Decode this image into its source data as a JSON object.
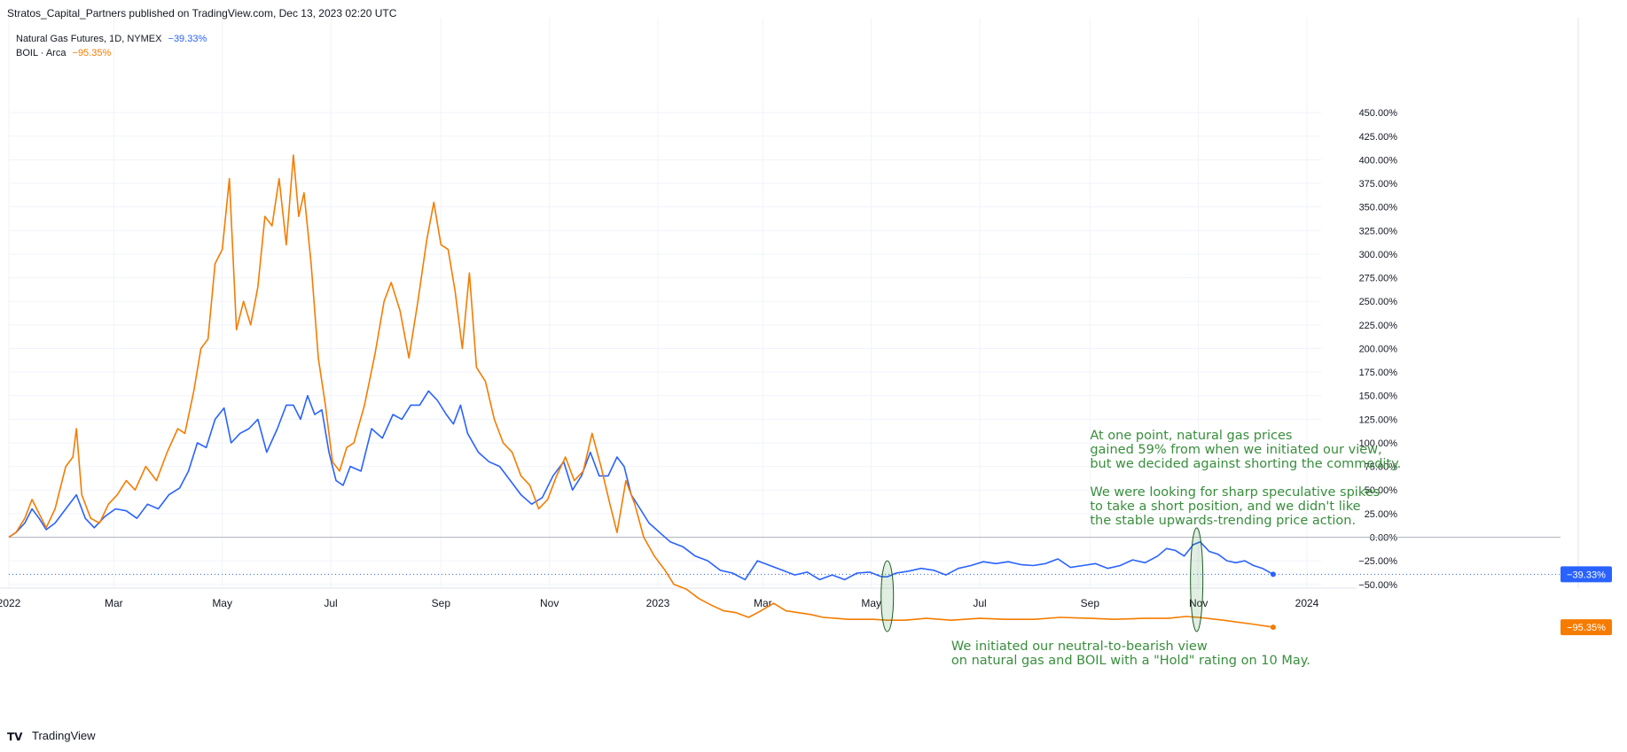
{
  "header": {
    "text": "Stratos_Capital_Partners published on TradingView.com, Dec 13, 2023 02:20 UTC"
  },
  "legend": {
    "ng_label": "Natural Gas Futures, 1D, NYMEX",
    "ng_pct": "−39.33%",
    "boil_label": "BOIL · Arca",
    "boil_pct": "−95.35%"
  },
  "footer": {
    "brand": "TradingView",
    "logo_text": "TV"
  },
  "annotations": {
    "top": "At one point, natural gas prices\ngained 59% from when we initiated our view,\nbut we decided against shorting the commodity.\n\nWe were looking for sharp speculative spikes\nto take a short position, and we didn't like\nthe stable upwards-trending price action.",
    "bottom": "We initiated our neutral-to-bearish view\non natural gas and BOIL with a \"Hold\" rating on 10 May."
  },
  "colors": {
    "ng": "#2962ff",
    "boil": "#f57c00",
    "annotation": "#388e3c",
    "grid": "#f0f3fa",
    "zero": "#b2b5be"
  },
  "chart_data": {
    "type": "line",
    "x_axis_type": "date",
    "x_range": [
      "2022-01-01",
      "2024-01-20"
    ],
    "ylim": [
      -135,
      460
    ],
    "y_ticks": [
      -125,
      -100,
      -75,
      -50,
      -25,
      0,
      25,
      50,
      75,
      100,
      125,
      150,
      175,
      200,
      225,
      250,
      275,
      300,
      325,
      350,
      375,
      400,
      425,
      450
    ],
    "y_tick_suffix": "%",
    "x_ticks": [
      {
        "date": "2022-01-01",
        "label": "2022"
      },
      {
        "date": "2022-03-01",
        "label": "Mar"
      },
      {
        "date": "2022-05-01",
        "label": "May"
      },
      {
        "date": "2022-07-01",
        "label": "Jul"
      },
      {
        "date": "2022-09-01",
        "label": "Sep"
      },
      {
        "date": "2022-11-01",
        "label": "Nov"
      },
      {
        "date": "2023-01-01",
        "label": "2023"
      },
      {
        "date": "2023-03-01",
        "label": "Mar"
      },
      {
        "date": "2023-05-01",
        "label": "May"
      },
      {
        "date": "2023-07-01",
        "label": "Jul"
      },
      {
        "date": "2023-09-01",
        "label": "Sep"
      },
      {
        "date": "2023-11-01",
        "label": "Nov"
      },
      {
        "date": "2024-01-01",
        "label": "2024"
      }
    ],
    "grid": true,
    "zero_line": true,
    "series": [
      {
        "name": "Natural Gas Futures, 1D, NYMEX",
        "last_value_label": "−39.33%",
        "points": [
          [
            "2022-01-01",
            0
          ],
          [
            "2022-01-05",
            5
          ],
          [
            "2022-01-10",
            15
          ],
          [
            "2022-01-14",
            30
          ],
          [
            "2022-01-18",
            20
          ],
          [
            "2022-01-22",
            8
          ],
          [
            "2022-01-27",
            15
          ],
          [
            "2022-02-02",
            30
          ],
          [
            "2022-02-08",
            45
          ],
          [
            "2022-02-13",
            20
          ],
          [
            "2022-02-18",
            10
          ],
          [
            "2022-02-24",
            22
          ],
          [
            "2022-03-02",
            30
          ],
          [
            "2022-03-08",
            28
          ],
          [
            "2022-03-14",
            20
          ],
          [
            "2022-03-20",
            35
          ],
          [
            "2022-03-26",
            30
          ],
          [
            "2022-04-01",
            45
          ],
          [
            "2022-04-07",
            52
          ],
          [
            "2022-04-12",
            70
          ],
          [
            "2022-04-17",
            100
          ],
          [
            "2022-04-22",
            95
          ],
          [
            "2022-04-27",
            125
          ],
          [
            "2022-05-02",
            137
          ],
          [
            "2022-05-06",
            100
          ],
          [
            "2022-05-11",
            110
          ],
          [
            "2022-05-16",
            115
          ],
          [
            "2022-05-21",
            125
          ],
          [
            "2022-05-26",
            90
          ],
          [
            "2022-06-01",
            115
          ],
          [
            "2022-06-06",
            140
          ],
          [
            "2022-06-10",
            140
          ],
          [
            "2022-06-14",
            125
          ],
          [
            "2022-06-18",
            150
          ],
          [
            "2022-06-22",
            130
          ],
          [
            "2022-06-26",
            135
          ],
          [
            "2022-06-30",
            90
          ],
          [
            "2022-07-04",
            60
          ],
          [
            "2022-07-08",
            55
          ],
          [
            "2022-07-12",
            75
          ],
          [
            "2022-07-18",
            70
          ],
          [
            "2022-07-24",
            115
          ],
          [
            "2022-07-30",
            105
          ],
          [
            "2022-08-05",
            130
          ],
          [
            "2022-08-10",
            125
          ],
          [
            "2022-08-15",
            140
          ],
          [
            "2022-08-20",
            140
          ],
          [
            "2022-08-25",
            155
          ],
          [
            "2022-08-30",
            145
          ],
          [
            "2022-09-04",
            130
          ],
          [
            "2022-09-08",
            120
          ],
          [
            "2022-09-12",
            140
          ],
          [
            "2022-09-16",
            110
          ],
          [
            "2022-09-22",
            90
          ],
          [
            "2022-09-28",
            80
          ],
          [
            "2022-10-04",
            75
          ],
          [
            "2022-10-10",
            60
          ],
          [
            "2022-10-16",
            45
          ],
          [
            "2022-10-22",
            35
          ],
          [
            "2022-10-28",
            42
          ],
          [
            "2022-11-03",
            65
          ],
          [
            "2022-11-09",
            80
          ],
          [
            "2022-11-14",
            50
          ],
          [
            "2022-11-19",
            65
          ],
          [
            "2022-11-24",
            90
          ],
          [
            "2022-11-29",
            65
          ],
          [
            "2022-12-04",
            65
          ],
          [
            "2022-12-09",
            85
          ],
          [
            "2022-12-13",
            75
          ],
          [
            "2022-12-17",
            45
          ],
          [
            "2022-12-22",
            30
          ],
          [
            "2022-12-27",
            15
          ],
          [
            "2023-01-02",
            5
          ],
          [
            "2023-01-08",
            -5
          ],
          [
            "2023-01-15",
            -10
          ],
          [
            "2023-01-22",
            -20
          ],
          [
            "2023-01-29",
            -25
          ],
          [
            "2023-02-05",
            -35
          ],
          [
            "2023-02-12",
            -38
          ],
          [
            "2023-02-19",
            -45
          ],
          [
            "2023-02-26",
            -25
          ],
          [
            "2023-03-05",
            -30
          ],
          [
            "2023-03-12",
            -35
          ],
          [
            "2023-03-19",
            -40
          ],
          [
            "2023-03-26",
            -37
          ],
          [
            "2023-04-02",
            -45
          ],
          [
            "2023-04-09",
            -40
          ],
          [
            "2023-04-16",
            -45
          ],
          [
            "2023-04-23",
            -38
          ],
          [
            "2023-04-30",
            -37
          ],
          [
            "2023-05-07",
            -42
          ],
          [
            "2023-05-10",
            -42
          ],
          [
            "2023-05-15",
            -38
          ],
          [
            "2023-05-22",
            -36
          ],
          [
            "2023-05-29",
            -33
          ],
          [
            "2023-06-05",
            -35
          ],
          [
            "2023-06-12",
            -40
          ],
          [
            "2023-06-19",
            -33
          ],
          [
            "2023-06-26",
            -30
          ],
          [
            "2023-07-03",
            -26
          ],
          [
            "2023-07-10",
            -28
          ],
          [
            "2023-07-17",
            -26
          ],
          [
            "2023-07-24",
            -29
          ],
          [
            "2023-07-31",
            -30
          ],
          [
            "2023-08-07",
            -28
          ],
          [
            "2023-08-14",
            -23
          ],
          [
            "2023-08-21",
            -32
          ],
          [
            "2023-08-28",
            -30
          ],
          [
            "2023-09-04",
            -28
          ],
          [
            "2023-09-11",
            -33
          ],
          [
            "2023-09-18",
            -30
          ],
          [
            "2023-09-25",
            -24
          ],
          [
            "2023-10-02",
            -27
          ],
          [
            "2023-10-09",
            -20
          ],
          [
            "2023-10-14",
            -12
          ],
          [
            "2023-10-19",
            -14
          ],
          [
            "2023-10-24",
            -20
          ],
          [
            "2023-10-29",
            -8
          ],
          [
            "2023-11-02",
            -5
          ],
          [
            "2023-11-07",
            -15
          ],
          [
            "2023-11-12",
            -18
          ],
          [
            "2023-11-17",
            -25
          ],
          [
            "2023-11-22",
            -27
          ],
          [
            "2023-11-27",
            -25
          ],
          [
            "2023-12-02",
            -30
          ],
          [
            "2023-12-07",
            -33
          ],
          [
            "2023-12-13",
            -39.33
          ]
        ]
      },
      {
        "name": "BOIL · Arca",
        "last_value_label": "−95.35%",
        "points": [
          [
            "2022-01-01",
            0
          ],
          [
            "2022-01-05",
            5
          ],
          [
            "2022-01-10",
            20
          ],
          [
            "2022-01-14",
            40
          ],
          [
            "2022-01-18",
            25
          ],
          [
            "2022-01-22",
            10
          ],
          [
            "2022-01-27",
            30
          ],
          [
            "2022-02-02",
            75
          ],
          [
            "2022-02-06",
            85
          ],
          [
            "2022-02-08",
            115
          ],
          [
            "2022-02-11",
            45
          ],
          [
            "2022-02-16",
            20
          ],
          [
            "2022-02-21",
            15
          ],
          [
            "2022-02-26",
            35
          ],
          [
            "2022-03-03",
            45
          ],
          [
            "2022-03-08",
            60
          ],
          [
            "2022-03-13",
            50
          ],
          [
            "2022-03-19",
            75
          ],
          [
            "2022-03-25",
            60
          ],
          [
            "2022-03-31",
            90
          ],
          [
            "2022-04-06",
            115
          ],
          [
            "2022-04-10",
            110
          ],
          [
            "2022-04-15",
            155
          ],
          [
            "2022-04-19",
            200
          ],
          [
            "2022-04-23",
            210
          ],
          [
            "2022-04-27",
            290
          ],
          [
            "2022-05-01",
            305
          ],
          [
            "2022-05-05",
            380
          ],
          [
            "2022-05-09",
            220
          ],
          [
            "2022-05-13",
            250
          ],
          [
            "2022-05-17",
            225
          ],
          [
            "2022-05-21",
            265
          ],
          [
            "2022-05-25",
            340
          ],
          [
            "2022-05-29",
            330
          ],
          [
            "2022-06-02",
            380
          ],
          [
            "2022-06-06",
            310
          ],
          [
            "2022-06-10",
            405
          ],
          [
            "2022-06-13",
            340
          ],
          [
            "2022-06-16",
            365
          ],
          [
            "2022-06-20",
            290
          ],
          [
            "2022-06-24",
            190
          ],
          [
            "2022-06-28",
            140
          ],
          [
            "2022-07-02",
            80
          ],
          [
            "2022-07-06",
            70
          ],
          [
            "2022-07-10",
            95
          ],
          [
            "2022-07-14",
            100
          ],
          [
            "2022-07-20",
            140
          ],
          [
            "2022-07-26",
            195
          ],
          [
            "2022-07-31",
            250
          ],
          [
            "2022-08-04",
            270
          ],
          [
            "2022-08-09",
            240
          ],
          [
            "2022-08-14",
            190
          ],
          [
            "2022-08-19",
            250
          ],
          [
            "2022-08-24",
            315
          ],
          [
            "2022-08-28",
            355
          ],
          [
            "2022-09-01",
            310
          ],
          [
            "2022-09-05",
            305
          ],
          [
            "2022-09-09",
            260
          ],
          [
            "2022-09-13",
            200
          ],
          [
            "2022-09-17",
            280
          ],
          [
            "2022-09-21",
            180
          ],
          [
            "2022-09-26",
            165
          ],
          [
            "2022-10-01",
            125
          ],
          [
            "2022-10-06",
            100
          ],
          [
            "2022-10-11",
            90
          ],
          [
            "2022-10-16",
            65
          ],
          [
            "2022-10-21",
            55
          ],
          [
            "2022-10-26",
            30
          ],
          [
            "2022-10-31",
            40
          ],
          [
            "2022-11-05",
            65
          ],
          [
            "2022-11-10",
            85
          ],
          [
            "2022-11-15",
            60
          ],
          [
            "2022-11-20",
            70
          ],
          [
            "2022-11-25",
            110
          ],
          [
            "2022-11-30",
            75
          ],
          [
            "2022-12-05",
            35
          ],
          [
            "2022-12-09",
            5
          ],
          [
            "2022-12-14",
            60
          ],
          [
            "2022-12-19",
            35
          ],
          [
            "2022-12-24",
            0
          ],
          [
            "2022-12-30",
            -20
          ],
          [
            "2023-01-05",
            -35
          ],
          [
            "2023-01-10",
            -50
          ],
          [
            "2023-01-17",
            -55
          ],
          [
            "2023-01-24",
            -65
          ],
          [
            "2023-01-31",
            -72
          ],
          [
            "2023-02-07",
            -78
          ],
          [
            "2023-02-14",
            -80
          ],
          [
            "2023-02-21",
            -85
          ],
          [
            "2023-02-28",
            -78
          ],
          [
            "2023-03-07",
            -70
          ],
          [
            "2023-03-14",
            -78
          ],
          [
            "2023-03-21",
            -80
          ],
          [
            "2023-03-28",
            -82
          ],
          [
            "2023-04-04",
            -85
          ],
          [
            "2023-04-11",
            -86
          ],
          [
            "2023-04-18",
            -87
          ],
          [
            "2023-04-25",
            -87
          ],
          [
            "2023-05-02",
            -87
          ],
          [
            "2023-05-10",
            -88
          ],
          [
            "2023-05-20",
            -88
          ],
          [
            "2023-06-01",
            -86
          ],
          [
            "2023-06-15",
            -88
          ],
          [
            "2023-07-01",
            -86
          ],
          [
            "2023-07-15",
            -87
          ],
          [
            "2023-08-01",
            -87
          ],
          [
            "2023-08-15",
            -85
          ],
          [
            "2023-09-01",
            -86
          ],
          [
            "2023-09-15",
            -87
          ],
          [
            "2023-10-01",
            -86
          ],
          [
            "2023-10-15",
            -86
          ],
          [
            "2023-10-25",
            -84
          ],
          [
            "2023-11-01",
            -85
          ],
          [
            "2023-11-15",
            -88
          ],
          [
            "2023-12-01",
            -92
          ],
          [
            "2023-12-13",
            -95.35
          ]
        ]
      }
    ],
    "highlight_markers": [
      {
        "date": "2023-05-10",
        "y_range": [
          -100,
          -25
        ]
      },
      {
        "date": "2023-10-31",
        "y_range": [
          -100,
          10
        ]
      }
    ],
    "annotations": [
      {
        "text_ref": "annotations.top",
        "anchor_date": "2023-09-01",
        "anchor_value": 115
      },
      {
        "text_ref": "annotations.bottom",
        "anchor_date": "2023-06-15",
        "anchor_value": -108
      }
    ]
  }
}
